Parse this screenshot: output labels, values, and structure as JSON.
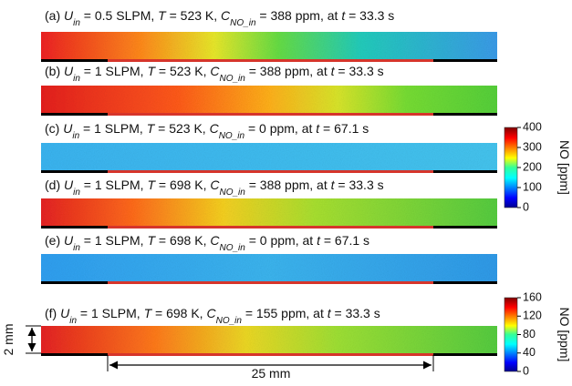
{
  "panels": [
    {
      "caption": [
        {
          "text": "(a) "
        },
        {
          "text": "U",
          "style": "i"
        },
        {
          "text": "in",
          "style": "sub"
        },
        {
          "text": " = 0.5 SLPM, "
        },
        {
          "text": "T",
          "style": "i"
        },
        {
          "text": " = 523 K, "
        },
        {
          "text": "C",
          "style": "i"
        },
        {
          "text": "NO_in",
          "style": "sub"
        },
        {
          "text": " = 388 ppm, at "
        },
        {
          "text": "t",
          "style": "i"
        },
        {
          "text": " = 33.3 s"
        }
      ]
    },
    {
      "caption": [
        {
          "text": "(b) "
        },
        {
          "text": "U",
          "style": "i"
        },
        {
          "text": "in",
          "style": "sub"
        },
        {
          "text": " = 1 SLPM, "
        },
        {
          "text": "T",
          "style": "i"
        },
        {
          "text": " = 523 K, "
        },
        {
          "text": "C",
          "style": "i"
        },
        {
          "text": "NO_in",
          "style": "sub"
        },
        {
          "text": " = 388 ppm, at "
        },
        {
          "text": "t",
          "style": "i"
        },
        {
          "text": " = 33.3 s"
        }
      ]
    },
    {
      "caption": [
        {
          "text": "(c) "
        },
        {
          "text": "U",
          "style": "i"
        },
        {
          "text": "in",
          "style": "sub"
        },
        {
          "text": " = 1 SLPM, "
        },
        {
          "text": "T",
          "style": "i"
        },
        {
          "text": " = 523 K, "
        },
        {
          "text": "C",
          "style": "i"
        },
        {
          "text": "NO_in",
          "style": "sub"
        },
        {
          "text": " = 0 ppm, at "
        },
        {
          "text": "t",
          "style": "i"
        },
        {
          "text": " = 67.1 s"
        }
      ]
    },
    {
      "caption": [
        {
          "text": "(d) "
        },
        {
          "text": "U",
          "style": "i"
        },
        {
          "text": "in",
          "style": "sub"
        },
        {
          "text": " = 1 SLPM, "
        },
        {
          "text": "T",
          "style": "i"
        },
        {
          "text": " = 698 K, "
        },
        {
          "text": "C",
          "style": "i"
        },
        {
          "text": "NO_in",
          "style": "sub"
        },
        {
          "text": " = 388 ppm, at "
        },
        {
          "text": "t",
          "style": "i"
        },
        {
          "text": " = 33.3 s"
        }
      ]
    },
    {
      "caption": [
        {
          "text": "(e) "
        },
        {
          "text": "U",
          "style": "i"
        },
        {
          "text": "in",
          "style": "sub"
        },
        {
          "text": " = 1 SLPM, "
        },
        {
          "text": "T",
          "style": "i"
        },
        {
          "text": " = 698 K, "
        },
        {
          "text": "C",
          "style": "i"
        },
        {
          "text": "NO_in",
          "style": "sub"
        },
        {
          "text": " = 0 ppm, at "
        },
        {
          "text": "t",
          "style": "i"
        },
        {
          "text": " = 67.1 s"
        }
      ]
    },
    {
      "caption": [
        {
          "text": "(f) "
        },
        {
          "text": "U",
          "style": "i"
        },
        {
          "text": "in",
          "style": "sub"
        },
        {
          "text": " = 1 SLPM, "
        },
        {
          "text": "T",
          "style": "i"
        },
        {
          "text": " = 698 K, "
        },
        {
          "text": "C",
          "style": "i"
        },
        {
          "text": "NO_in",
          "style": "sub"
        },
        {
          "text": " = 155 ppm, at "
        },
        {
          "text": "t",
          "style": "i"
        },
        {
          "text": " = 33.3 s"
        }
      ]
    }
  ],
  "colorbars": [
    {
      "label": "NO [ppm]",
      "ylim": [
        0,
        400
      ],
      "yticks": [
        0,
        100,
        200,
        300,
        400
      ]
    },
    {
      "label": "NO [ppm]",
      "ylim": [
        0,
        160
      ],
      "yticks": [
        0,
        40,
        80,
        120,
        160
      ]
    }
  ],
  "dimensions": {
    "height": "2 mm",
    "length": "25 mm"
  }
}
